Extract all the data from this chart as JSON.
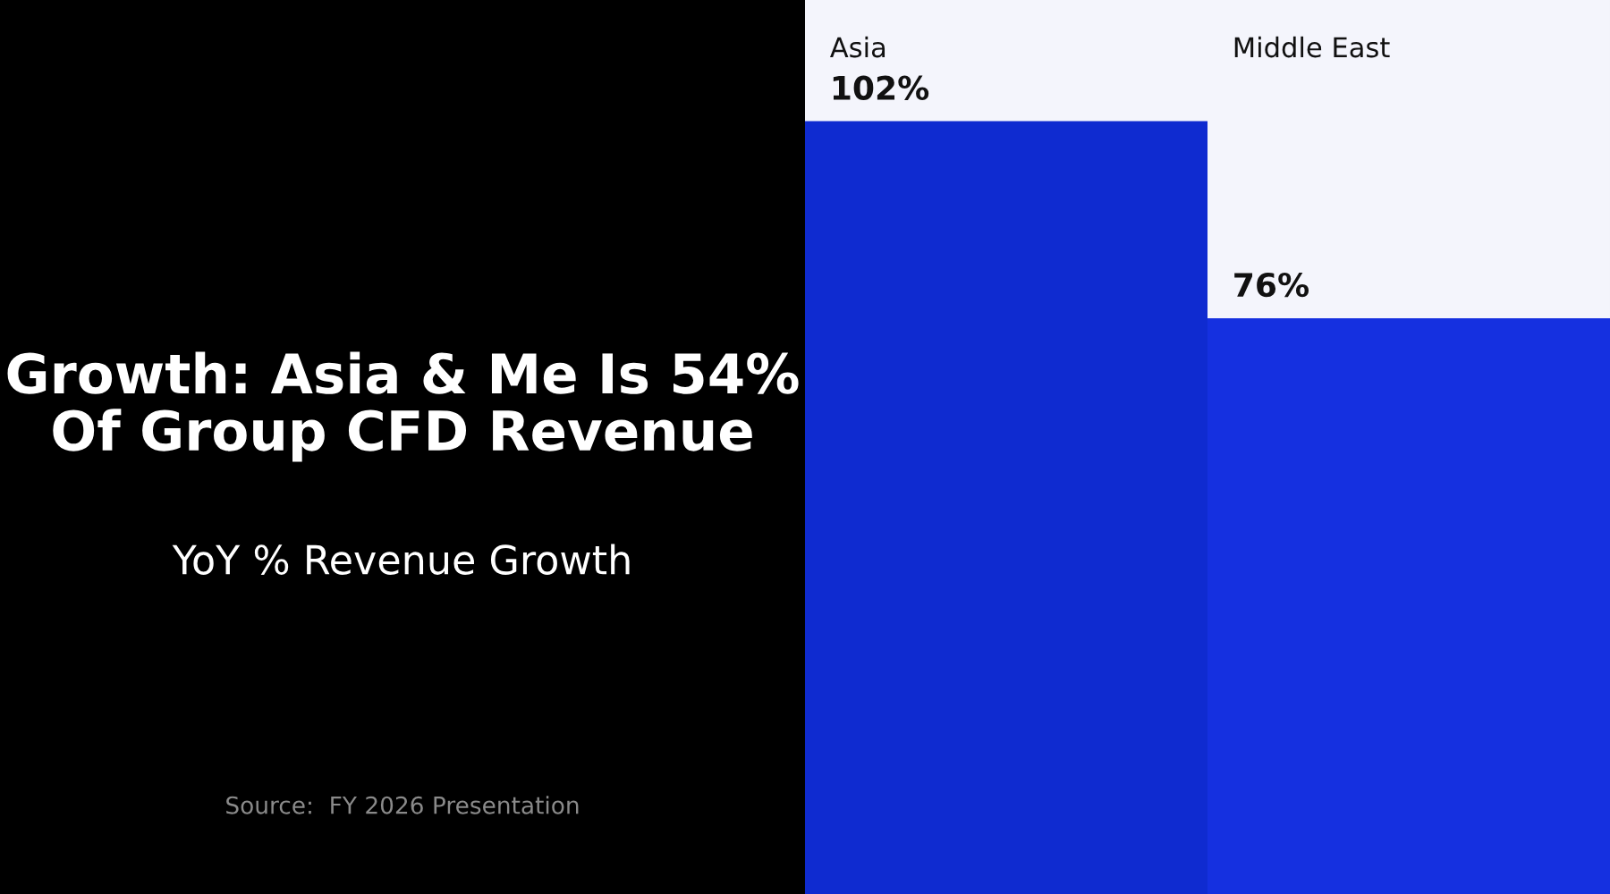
{
  "chart_data": {
    "type": "bar",
    "title": "Growth: Asia & Me Is 54% Of Group CFD Revenue",
    "subtitle": "YoY % Revenue Growth",
    "annotations": [
      "Source:  FY 2026 Presentation"
    ],
    "categories": [
      "Asia",
      "Middle East"
    ],
    "values": [
      102,
      76
    ],
    "value_labels": [
      "102%",
      "76%"
    ],
    "colors": [
      "#0f2bd0",
      "#1530e0"
    ],
    "ylim": [
      0,
      118
    ]
  }
}
